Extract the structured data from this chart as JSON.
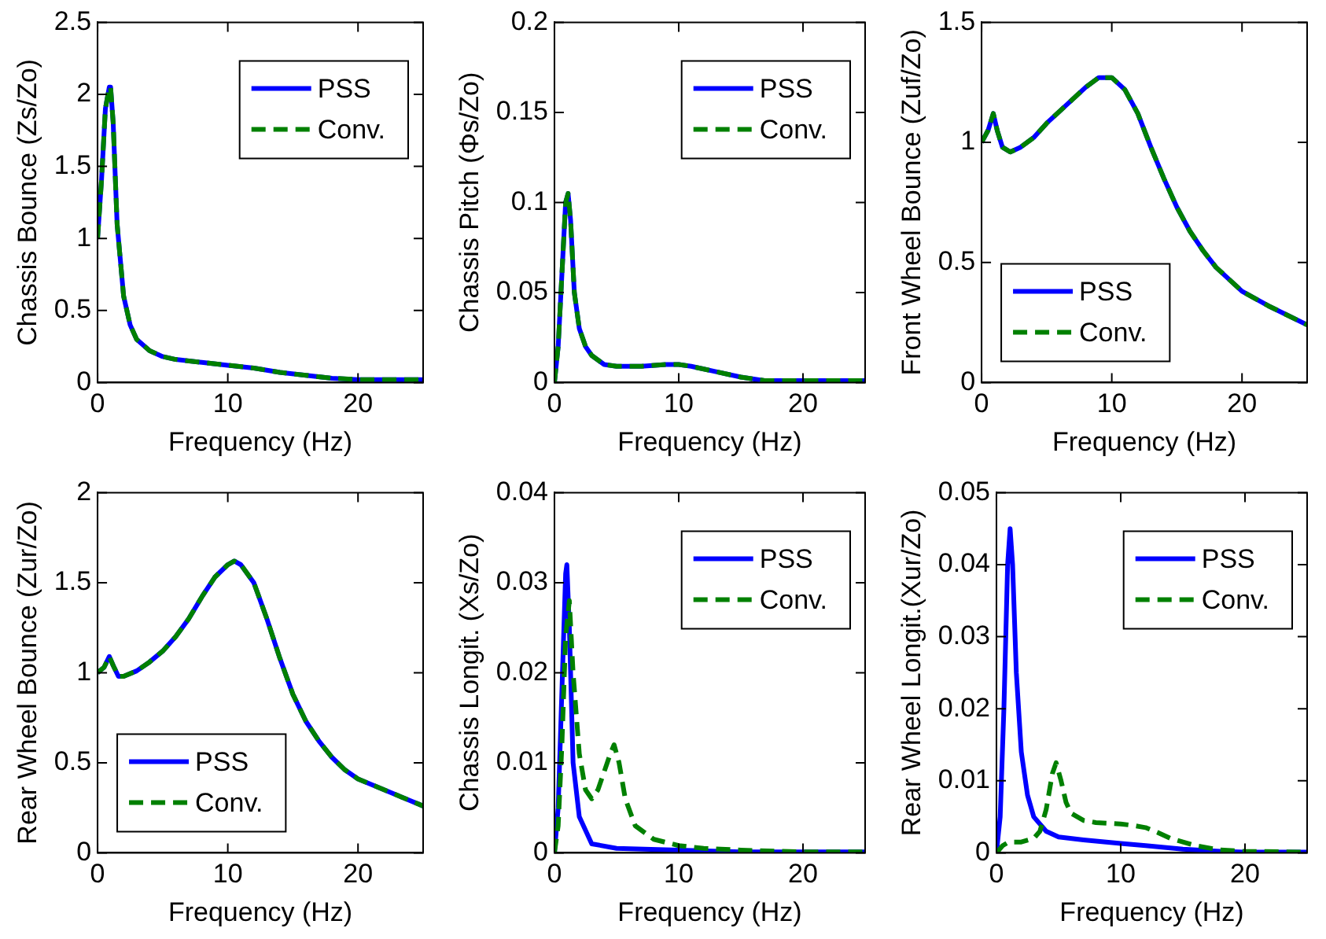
{
  "chart_data": [
    {
      "type": "line",
      "xlabel": "Frequency (Hz)",
      "ylabel": "Chassis Bounce (Zs/Zo)",
      "xlim": [
        0,
        25
      ],
      "xticks": [
        0,
        10,
        20
      ],
      "ylim": [
        0,
        2.5
      ],
      "yticks": [
        0,
        0.5,
        1,
        1.5,
        2,
        2.5
      ],
      "legend": "top right",
      "x": [
        0,
        0.3,
        0.6,
        0.9,
        1.0,
        1.2,
        1.5,
        2,
        2.5,
        3,
        4,
        5,
        6,
        8,
        10,
        12,
        14,
        16,
        18,
        20,
        22,
        25
      ],
      "series": [
        {
          "name": "PSS",
          "color": "#0000ff",
          "line_style": "solid",
          "values": [
            1,
            1.4,
            1.9,
            2.05,
            2.05,
            1.8,
            1.1,
            0.6,
            0.4,
            0.3,
            0.22,
            0.18,
            0.16,
            0.14,
            0.12,
            0.1,
            0.07,
            0.05,
            0.03,
            0.02,
            0.02,
            0.02
          ]
        },
        {
          "name": "Conv.",
          "color": "#008000",
          "line_style": "dashed",
          "values": [
            1,
            1.4,
            1.9,
            2.05,
            2.05,
            1.8,
            1.1,
            0.6,
            0.4,
            0.3,
            0.22,
            0.18,
            0.16,
            0.14,
            0.12,
            0.1,
            0.07,
            0.05,
            0.03,
            0.02,
            0.02,
            0.02
          ]
        }
      ]
    },
    {
      "type": "line",
      "xlabel": "Frequency (Hz)",
      "ylabel": "Chassis Pitch (Φs/Zo)",
      "xlim": [
        0,
        25
      ],
      "xticks": [
        0,
        10,
        20
      ],
      "ylim": [
        0,
        0.2
      ],
      "yticks": [
        0,
        0.05,
        0.1,
        0.15,
        0.2
      ],
      "legend": "top right",
      "x": [
        0,
        0.3,
        0.6,
        0.9,
        1.1,
        1.3,
        1.6,
        2,
        2.5,
        3,
        4,
        5,
        7,
        9,
        10,
        11,
        13,
        15,
        17,
        20,
        25
      ],
      "series": [
        {
          "name": "PSS",
          "color": "#0000ff",
          "line_style": "solid",
          "values": [
            0,
            0.02,
            0.06,
            0.1,
            0.105,
            0.09,
            0.05,
            0.03,
            0.02,
            0.015,
            0.01,
            0.009,
            0.009,
            0.01,
            0.01,
            0.009,
            0.006,
            0.003,
            0.001,
            0.001,
            0.001
          ]
        },
        {
          "name": "Conv.",
          "color": "#008000",
          "line_style": "dashed",
          "values": [
            0,
            0.02,
            0.06,
            0.1,
            0.105,
            0.09,
            0.05,
            0.03,
            0.02,
            0.015,
            0.01,
            0.009,
            0.009,
            0.01,
            0.01,
            0.009,
            0.006,
            0.003,
            0.001,
            0.001,
            0.001
          ]
        }
      ]
    },
    {
      "type": "line",
      "xlabel": "Frequency (Hz)",
      "ylabel": "Front Wheel Bounce (Zuf/Zo)",
      "xlim": [
        0,
        25
      ],
      "xticks": [
        0,
        10,
        20
      ],
      "ylim": [
        0,
        1.5
      ],
      "yticks": [
        0,
        0.5,
        1,
        1.5
      ],
      "legend": "bottom left",
      "x": [
        0,
        0.5,
        0.9,
        1.2,
        1.6,
        2.2,
        3,
        4,
        5,
        6,
        7,
        8,
        9,
        10,
        11,
        12,
        13,
        14,
        15,
        16,
        17,
        18,
        19,
        20,
        22,
        25
      ],
      "series": [
        {
          "name": "PSS",
          "color": "#0000ff",
          "line_style": "solid",
          "values": [
            1,
            1.05,
            1.12,
            1.05,
            0.98,
            0.96,
            0.98,
            1.02,
            1.08,
            1.13,
            1.18,
            1.23,
            1.27,
            1.27,
            1.22,
            1.12,
            0.98,
            0.85,
            0.73,
            0.63,
            0.55,
            0.48,
            0.43,
            0.38,
            0.32,
            0.24
          ]
        },
        {
          "name": "Conv.",
          "color": "#008000",
          "line_style": "dashed",
          "values": [
            1,
            1.05,
            1.12,
            1.05,
            0.98,
            0.96,
            0.98,
            1.02,
            1.08,
            1.13,
            1.18,
            1.23,
            1.27,
            1.27,
            1.22,
            1.12,
            0.98,
            0.85,
            0.73,
            0.63,
            0.55,
            0.48,
            0.43,
            0.38,
            0.32,
            0.24
          ]
        }
      ]
    },
    {
      "type": "line",
      "xlabel": "Frequency (Hz)",
      "ylabel": "Rear Wheel Bounce (Zur/Zo)",
      "xlim": [
        0,
        25
      ],
      "xticks": [
        0,
        10,
        20
      ],
      "ylim": [
        0,
        2
      ],
      "yticks": [
        0,
        0.5,
        1,
        1.5,
        2
      ],
      "legend": "bottom left",
      "x": [
        0,
        0.5,
        0.9,
        1.2,
        1.6,
        2,
        3,
        4,
        5,
        6,
        7,
        8,
        9,
        10,
        10.5,
        11,
        12,
        13,
        14,
        15,
        16,
        17,
        18,
        19,
        20,
        22,
        25
      ],
      "series": [
        {
          "name": "PSS",
          "color": "#0000ff",
          "line_style": "solid",
          "values": [
            1,
            1.03,
            1.09,
            1.04,
            0.98,
            0.98,
            1.01,
            1.06,
            1.12,
            1.2,
            1.3,
            1.42,
            1.53,
            1.6,
            1.62,
            1.6,
            1.5,
            1.3,
            1.08,
            0.88,
            0.73,
            0.62,
            0.53,
            0.46,
            0.41,
            0.35,
            0.26
          ]
        },
        {
          "name": "Conv.",
          "color": "#008000",
          "line_style": "dashed",
          "values": [
            1,
            1.03,
            1.09,
            1.04,
            0.98,
            0.98,
            1.01,
            1.06,
            1.12,
            1.2,
            1.3,
            1.42,
            1.53,
            1.6,
            1.62,
            1.6,
            1.5,
            1.3,
            1.08,
            0.88,
            0.73,
            0.62,
            0.53,
            0.46,
            0.41,
            0.35,
            0.26
          ]
        }
      ]
    },
    {
      "type": "line",
      "xlabel": "Frequency (Hz)",
      "ylabel": "Chassis Longit. (Xs/Zo)",
      "xlim": [
        0,
        25
      ],
      "xticks": [
        0,
        10,
        20
      ],
      "ylim": [
        0,
        0.04
      ],
      "yticks": [
        0,
        0.01,
        0.02,
        0.03,
        0.04
      ],
      "legend": "top right",
      "series": [
        {
          "name": "PSS",
          "color": "#0000ff",
          "line_style": "solid",
          "x": [
            0,
            0.3,
            0.6,
            0.9,
            1.0,
            1.2,
            1.5,
            2,
            3,
            5,
            10,
            15,
            20,
            25
          ],
          "values": [
            0,
            0.005,
            0.018,
            0.031,
            0.032,
            0.025,
            0.01,
            0.004,
            0.001,
            0.0005,
            0.0003,
            0.0001,
            0.0001,
            0.0001
          ]
        },
        {
          "name": "Conv.",
          "color": "#008000",
          "line_style": "dashed",
          "x": [
            0,
            0.3,
            0.6,
            0.9,
            1.2,
            1.5,
            2,
            2.5,
            3,
            3.5,
            4,
            4.5,
            4.8,
            5.2,
            5.7,
            6.5,
            8,
            10,
            12,
            15,
            20,
            25
          ],
          "values": [
            0,
            0.003,
            0.012,
            0.024,
            0.028,
            0.02,
            0.011,
            0.007,
            0.006,
            0.007,
            0.009,
            0.011,
            0.012,
            0.01,
            0.006,
            0.003,
            0.0015,
            0.0008,
            0.0005,
            0.0003,
            0.0001,
            0.0001
          ]
        }
      ]
    },
    {
      "type": "line",
      "xlabel": "Frequency (Hz)",
      "ylabel": "Rear Wheel Longit.(Xur/Zo)",
      "xlim": [
        0,
        25
      ],
      "xticks": [
        0,
        10,
        20
      ],
      "ylim": [
        0,
        0.05
      ],
      "yticks": [
        0,
        0.01,
        0.02,
        0.03,
        0.04,
        0.05
      ],
      "legend": "top right",
      "series": [
        {
          "name": "PSS",
          "color": "#0000ff",
          "line_style": "solid",
          "x": [
            0,
            0.3,
            0.6,
            0.9,
            1.1,
            1.3,
            1.6,
            2,
            2.5,
            3,
            4,
            5,
            7,
            10,
            12,
            15,
            18,
            20,
            25
          ],
          "values": [
            0,
            0.005,
            0.02,
            0.04,
            0.045,
            0.04,
            0.025,
            0.014,
            0.008,
            0.005,
            0.003,
            0.0022,
            0.0018,
            0.0013,
            0.001,
            0.0005,
            0.0002,
            0.0001,
            0.0001
          ]
        },
        {
          "name": "Conv.",
          "color": "#008000",
          "line_style": "dashed",
          "x": [
            0,
            0.5,
            1,
            1.5,
            2,
            3,
            3.5,
            4,
            4.5,
            4.8,
            5.2,
            5.6,
            6,
            7,
            8,
            10,
            11,
            12,
            13,
            14,
            16,
            18,
            20,
            25
          ],
          "values": [
            0,
            0.001,
            0.0015,
            0.0015,
            0.0015,
            0.002,
            0.003,
            0.006,
            0.011,
            0.0125,
            0.01,
            0.007,
            0.0055,
            0.0045,
            0.0042,
            0.004,
            0.0038,
            0.0035,
            0.0028,
            0.002,
            0.001,
            0.0004,
            0.0002,
            0.0001
          ]
        }
      ]
    }
  ]
}
